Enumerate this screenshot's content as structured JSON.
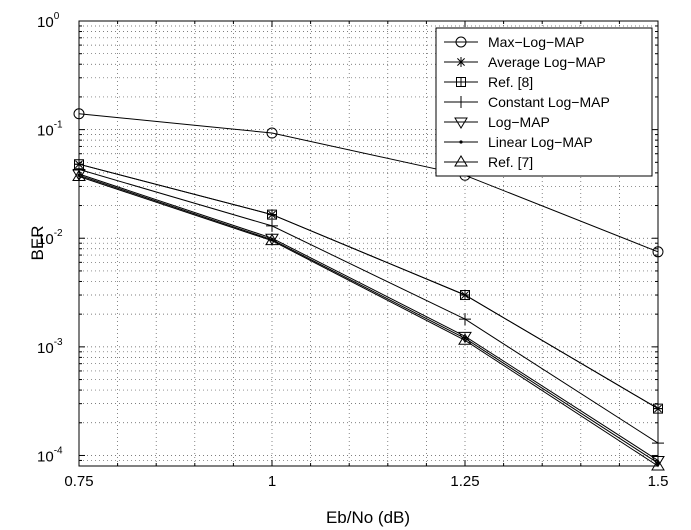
{
  "chart_data": {
    "type": "line",
    "xlabel": "Eb/No (dB)",
    "ylabel": "BER",
    "x": [
      0.75,
      1,
      1.25,
      1.5
    ],
    "xticks": [
      "0.75",
      "1",
      "1.25",
      "1.5"
    ],
    "xlim": [
      0.75,
      1.5
    ],
    "yscale": "log",
    "ylim": [
      8e-05,
      1
    ],
    "yticks": [
      {
        "base": "10",
        "exp": "-4"
      },
      {
        "base": "10",
        "exp": "-3"
      },
      {
        "base": "10",
        "exp": "-2"
      },
      {
        "base": "10",
        "exp": "-1"
      },
      {
        "base": "10",
        "exp": "0"
      }
    ],
    "grid": true,
    "legend_position": "top-right",
    "series": [
      {
        "name": "Max−Log−MAP",
        "marker": "circle",
        "values": [
          0.14,
          0.093,
          0.038,
          0.0075
        ]
      },
      {
        "name": "Average Log−MAP",
        "marker": "asterisk",
        "values": [
          0.048,
          0.0165,
          0.003,
          0.00027
        ]
      },
      {
        "name": "Ref. [8]",
        "marker": "square-plus",
        "values": [
          0.048,
          0.0165,
          0.003,
          0.00027
        ]
      },
      {
        "name": "Constant Log−MAP",
        "marker": "plus",
        "values": [
          0.043,
          0.013,
          0.0018,
          0.00013
        ]
      },
      {
        "name": "Log−MAP",
        "marker": "triangle-down",
        "values": [
          0.039,
          0.01,
          0.00125,
          9e-05
        ]
      },
      {
        "name": "Linear Log−MAP",
        "marker": "dot",
        "values": [
          0.038,
          0.0097,
          0.0012,
          8.5e-05
        ]
      },
      {
        "name": "Ref. [7]",
        "marker": "triangle-up",
        "values": [
          0.037,
          0.0095,
          0.00115,
          8e-05
        ]
      }
    ]
  }
}
